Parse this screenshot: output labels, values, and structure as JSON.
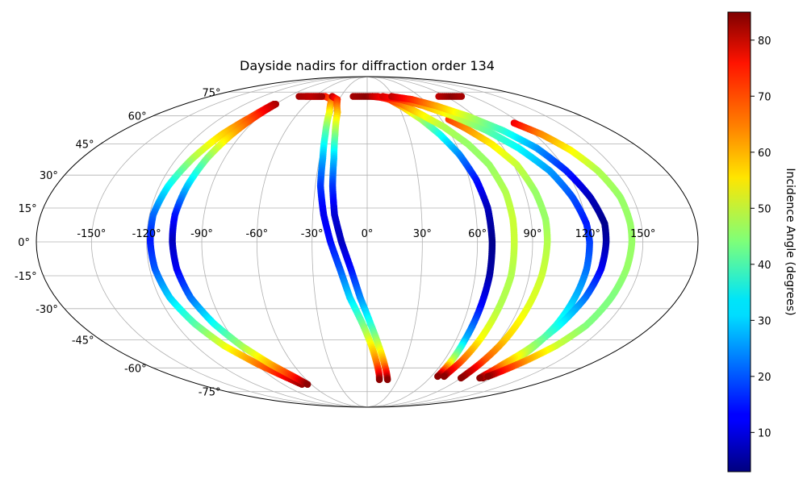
{
  "chart_data": {
    "type": "scatter",
    "projection": "mollweide",
    "title": "Dayside nadirs for diffraction order 134",
    "x_ticks": [
      "-150°",
      "-120°",
      "-90°",
      "-60°",
      "-30°",
      "0°",
      "30°",
      "60°",
      "90°",
      "120°",
      "150°"
    ],
    "x_tick_values": [
      -150,
      -120,
      -90,
      -60,
      -30,
      0,
      30,
      60,
      90,
      120,
      150
    ],
    "y_ticks": [
      "75°",
      "60°",
      "45°",
      "30°",
      "15°",
      "0°",
      "-15°",
      "-30°",
      "-45°",
      "-60°",
      "-75°"
    ],
    "y_tick_values": [
      75,
      60,
      45,
      30,
      15,
      0,
      -15,
      -30,
      -45,
      -60,
      -75
    ],
    "xlim": [
      -180,
      180
    ],
    "ylim": [
      -90,
      90
    ],
    "grid": true,
    "colorbar": {
      "label": "Incidence Angle (degrees)",
      "colormap": "jet",
      "range": [
        3,
        85
      ],
      "ticks": [
        "10",
        "20",
        "30",
        "40",
        "50",
        "60",
        "70",
        "80"
      ],
      "tick_values": [
        10,
        20,
        30,
        40,
        50,
        60,
        70,
        80
      ]
    },
    "series": [
      {
        "points": [
          [
            -92,
            67,
            80
          ],
          [
            -96,
            60,
            70
          ],
          [
            -104,
            50,
            58
          ],
          [
            -110,
            38,
            48
          ],
          [
            -115,
            25,
            34
          ],
          [
            -118,
            12,
            22
          ],
          [
            -118,
            0,
            15
          ],
          [
            -117,
            -12,
            20
          ],
          [
            -114,
            -25,
            30
          ],
          [
            -108,
            -37,
            40
          ],
          [
            -100,
            -48,
            52
          ],
          [
            -88,
            -58,
            65
          ],
          [
            -76,
            -66,
            76
          ],
          [
            -70,
            -70,
            83
          ]
        ]
      },
      {
        "points": [
          [
            -90,
            67,
            82
          ],
          [
            -93,
            60,
            72
          ],
          [
            -97,
            50,
            60
          ],
          [
            -101,
            38,
            45
          ],
          [
            -104,
            25,
            30
          ],
          [
            -106,
            12,
            15
          ],
          [
            -106,
            0,
            8
          ],
          [
            -105,
            -12,
            12
          ],
          [
            -102,
            -25,
            22
          ],
          [
            -96,
            -37,
            34
          ],
          [
            -88,
            -48,
            46
          ],
          [
            -78,
            -58,
            60
          ],
          [
            -68,
            -66,
            74
          ],
          [
            -64,
            -70,
            84
          ]
        ]
      },
      {
        "points": [
          [
            -70,
            72,
            80
          ],
          [
            -48,
            72,
            74
          ],
          [
            -38,
            70,
            68
          ],
          [
            -33,
            62,
            55
          ],
          [
            -30,
            50,
            40
          ],
          [
            -28,
            38,
            28
          ],
          [
            -27,
            25,
            18
          ],
          [
            -24,
            12,
            12
          ],
          [
            -20,
            0,
            14
          ],
          [
            -15,
            -12,
            20
          ],
          [
            -10,
            -25,
            30
          ],
          [
            -3,
            -37,
            42
          ],
          [
            3,
            -48,
            55
          ],
          [
            8,
            -58,
            66
          ],
          [
            11,
            -64,
            76
          ],
          [
            12,
            -67,
            84
          ]
        ]
      },
      {
        "points": [
          [
            -40,
            72,
            80
          ],
          [
            -32,
            70,
            72
          ],
          [
            -26,
            62,
            60
          ],
          [
            -23,
            50,
            45
          ],
          [
            -21,
            38,
            30
          ],
          [
            -20,
            25,
            18
          ],
          [
            -18,
            12,
            10
          ],
          [
            -14,
            0,
            8
          ],
          [
            -9,
            -12,
            14
          ],
          [
            -4,
            -25,
            24
          ],
          [
            2,
            -37,
            36
          ],
          [
            8,
            -48,
            50
          ],
          [
            14,
            -58,
            64
          ],
          [
            18,
            -64,
            76
          ],
          [
            20,
            -67,
            84
          ]
        ]
      },
      {
        "points": [
          [
            -16,
            72,
            82
          ],
          [
            0,
            72,
            84
          ],
          [
            12,
            72,
            80
          ],
          [
            24,
            70,
            70
          ],
          [
            34,
            65,
            60
          ],
          [
            44,
            58,
            48
          ],
          [
            52,
            50,
            36
          ],
          [
            59,
            40,
            25
          ],
          [
            64,
            28,
            15
          ],
          [
            67,
            15,
            8
          ],
          [
            68,
            0,
            4
          ],
          [
            68,
            -15,
            6
          ],
          [
            67,
            -30,
            14
          ],
          [
            66,
            -45,
            28
          ],
          [
            66,
            -56,
            50
          ],
          [
            66,
            -62,
            72
          ],
          [
            66,
            -65,
            84
          ]
        ]
      },
      {
        "points": [
          [
            6,
            72,
            80
          ],
          [
            20,
            71,
            74
          ],
          [
            34,
            67,
            66
          ],
          [
            46,
            61,
            56
          ],
          [
            58,
            54,
            48
          ],
          [
            68,
            45,
            46
          ],
          [
            75,
            35,
            46
          ],
          [
            79,
            22,
            48
          ],
          [
            80,
            10,
            50
          ],
          [
            80,
            0,
            50
          ],
          [
            80,
            -15,
            48
          ],
          [
            78,
            -30,
            48
          ],
          [
            76,
            -45,
            54
          ],
          [
            74,
            -56,
            66
          ],
          [
            72,
            -63,
            78
          ],
          [
            72,
            -65,
            84
          ]
        ]
      },
      {
        "points": [
          [
            66,
            58,
            70
          ],
          [
            74,
            53,
            64
          ],
          [
            84,
            45,
            56
          ],
          [
            92,
            35,
            50
          ],
          [
            96,
            22,
            46
          ],
          [
            98,
            10,
            46
          ],
          [
            98,
            0,
            48
          ],
          [
            97,
            -15,
            50
          ],
          [
            95,
            -30,
            52
          ],
          [
            93,
            -45,
            58
          ],
          [
            91,
            -56,
            68
          ],
          [
            90,
            -63,
            80
          ],
          [
            90,
            -66,
            84
          ]
        ]
      },
      {
        "points": [
          [
            18,
            72,
            78
          ],
          [
            36,
            70,
            72
          ],
          [
            54,
            66,
            62
          ],
          [
            72,
            60,
            52
          ],
          [
            88,
            52,
            42
          ],
          [
            100,
            43,
            34
          ],
          [
            110,
            32,
            26
          ],
          [
            116,
            20,
            20
          ],
          [
            120,
            8,
            15
          ],
          [
            121,
            0,
            18
          ],
          [
            121,
            -12,
            22
          ],
          [
            120,
            -25,
            28
          ],
          [
            119,
            -38,
            36
          ],
          [
            117,
            -50,
            46
          ],
          [
            114,
            -58,
            58
          ],
          [
            112,
            -64,
            72
          ],
          [
            111,
            -66,
            84
          ]
        ]
      },
      {
        "points": [
          [
            28,
            72,
            80
          ],
          [
            48,
            70,
            72
          ],
          [
            66,
            66,
            62
          ],
          [
            84,
            60,
            50
          ],
          [
            100,
            52,
            38
          ],
          [
            112,
            43,
            26
          ],
          [
            120,
            32,
            16
          ],
          [
            126,
            20,
            8
          ],
          [
            130,
            8,
            4
          ],
          [
            130,
            0,
            6
          ],
          [
            129,
            -12,
            12
          ],
          [
            126,
            -25,
            22
          ],
          [
            121,
            -38,
            34
          ],
          [
            115,
            -50,
            48
          ],
          [
            110,
            -58,
            62
          ],
          [
            108,
            -64,
            76
          ],
          [
            108,
            -66,
            84
          ]
        ]
      },
      {
        "points": [
          [
            115,
            56,
            76
          ],
          [
            125,
            50,
            64
          ],
          [
            133,
            42,
            55
          ],
          [
            139,
            32,
            48
          ],
          [
            143,
            20,
            46
          ],
          [
            144,
            8,
            46
          ],
          [
            144,
            0,
            46
          ],
          [
            143,
            -12,
            46
          ],
          [
            141,
            -25,
            44
          ],
          [
            138,
            -38,
            44
          ],
          [
            132,
            -48,
            50
          ],
          [
            124,
            -56,
            62
          ],
          [
            117,
            -62,
            74
          ],
          [
            113,
            -65,
            84
          ]
        ]
      },
      {
        "points": [
          [
            82,
            72,
            80
          ],
          [
            98,
            72,
            84
          ],
          [
            108,
            72,
            82
          ]
        ]
      },
      {
        "points": [
          [
            -78,
            72,
            82
          ],
          [
            -62,
            72,
            80
          ],
          [
            -52,
            72,
            82
          ]
        ]
      }
    ]
  }
}
